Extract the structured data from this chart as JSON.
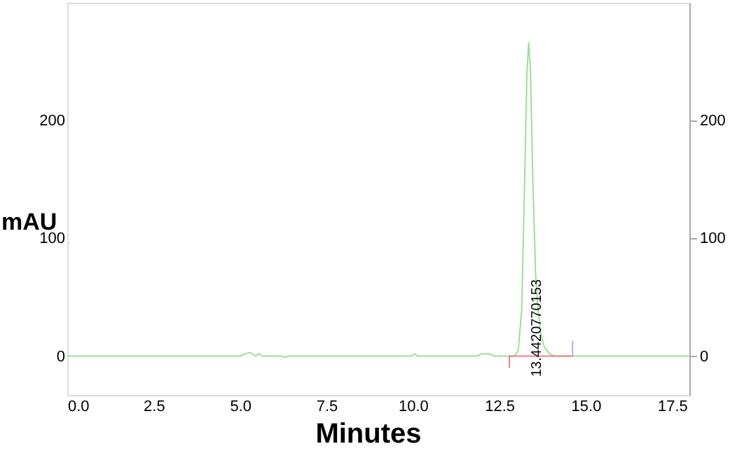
{
  "chart_data": {
    "type": "line",
    "xlabel": "Minutes",
    "ylabel": "mAU",
    "xlim": [
      0,
      18
    ],
    "ylim": [
      -33,
      300
    ],
    "y2lim": [
      -33,
      300
    ],
    "xticks": [
      {
        "value": 0,
        "label": "0.0"
      },
      {
        "value": 2.5,
        "label": "2.5"
      },
      {
        "value": 5,
        "label": "5.0"
      },
      {
        "value": 7.5,
        "label": "7.5"
      },
      {
        "value": 10,
        "label": "10.0"
      },
      {
        "value": 12.5,
        "label": "12.5"
      },
      {
        "value": 15,
        "label": "15.0"
      },
      {
        "value": 17.5,
        "label": "17.5"
      }
    ],
    "yticks": [
      0,
      100,
      200
    ],
    "y2ticks": [
      0,
      100,
      200
    ],
    "grid": false,
    "marker": "none",
    "line_style": "solid",
    "series": [
      {
        "color": "#9ede98",
        "x": [
          0,
          5.0,
          5.15,
          5.3,
          5.45,
          5.55,
          5.65,
          5.8,
          6.2,
          6.3,
          6.4,
          9.95,
          10.05,
          10.15,
          11.85,
          12.0,
          12.2,
          12.35,
          12.95,
          13.05,
          13.15,
          13.22,
          13.3,
          13.35,
          13.4,
          13.47,
          13.55,
          13.62,
          13.7,
          13.8,
          13.95,
          14.1,
          18
        ],
        "values": [
          0,
          0,
          2,
          3,
          0,
          2,
          0,
          0,
          0,
          -1,
          0,
          0,
          2,
          0,
          0,
          2,
          2,
          0,
          0,
          5,
          40,
          130,
          240,
          266,
          245,
          150,
          70,
          40,
          20,
          8,
          2,
          0,
          0
        ]
      },
      {
        "color": "#f08080",
        "x": [
          12.79,
          12.79,
          14.62
        ],
        "values": [
          -10,
          0,
          0
        ]
      },
      {
        "color": "#b0b0e0",
        "x": [
          14.62,
          14.62
        ],
        "values": [
          0,
          13
        ]
      }
    ],
    "annotations": [
      "13.4420770153"
    ]
  }
}
